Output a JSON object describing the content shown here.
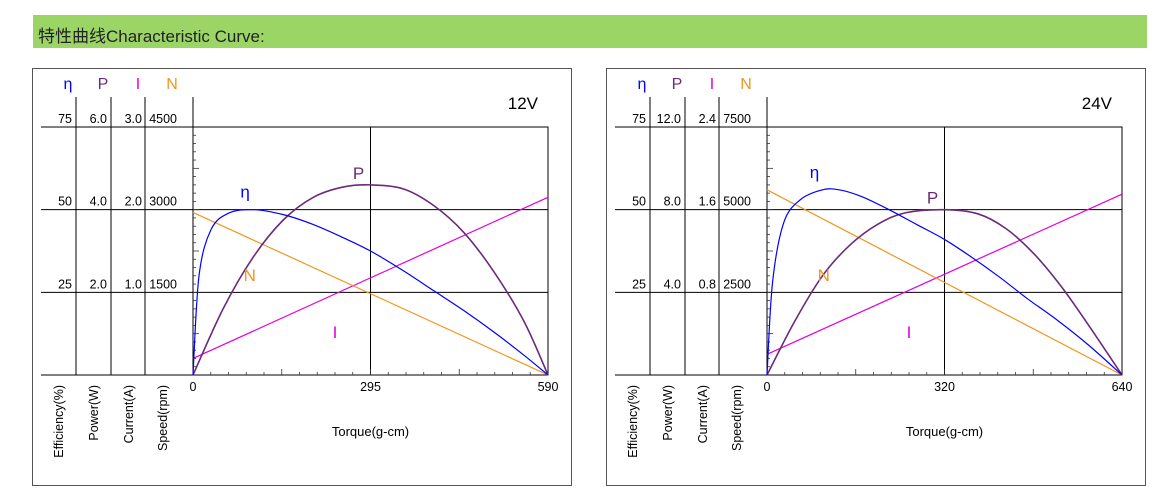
{
  "header": {
    "title": "特性曲线Characteristic Curve:"
  },
  "colors": {
    "header_bg": "#9bd566",
    "efficiency": "#0000ff",
    "power": "#6b2a7a",
    "current": "#e000e0",
    "speed": "#f0961e",
    "grid": "#000000"
  },
  "chart_data": [
    {
      "type": "line",
      "voltage_label": "12V",
      "xlabel": "Torque(g-cm)",
      "x_ticks": [
        "0",
        "295",
        "590"
      ],
      "xlim": [
        0,
        590
      ],
      "axes": [
        {
          "symbol": "η",
          "label": "Efficiency(%)",
          "ticks": [
            "75",
            "50",
            "25"
          ],
          "ylim": [
            0,
            75
          ]
        },
        {
          "symbol": "P",
          "label": "Power(W)",
          "ticks": [
            "6.0",
            "4.0",
            "2.0"
          ],
          "ylim": [
            0,
            6.0
          ]
        },
        {
          "symbol": "I",
          "label": "Current(A)",
          "ticks": [
            "3.0",
            "2.0",
            "1.0"
          ],
          "ylim": [
            0,
            3.0
          ]
        },
        {
          "symbol": "N",
          "label": "Speed(rpm)",
          "ticks": [
            "4500",
            "3000",
            "1500"
          ],
          "ylim": [
            0,
            4500
          ]
        }
      ],
      "series": [
        {
          "name": "η",
          "x": [
            0,
            10,
            30,
            60,
            100,
            150,
            200,
            250,
            295,
            350,
            400,
            450,
            500,
            550,
            590
          ],
          "values": [
            0,
            30,
            44,
            49,
            50,
            48.5,
            45.5,
            41.5,
            37.5,
            31.5,
            25.5,
            19.5,
            13,
            6,
            0
          ]
        },
        {
          "name": "P",
          "x": [
            0,
            50,
            100,
            150,
            200,
            250,
            295,
            350,
            400,
            450,
            500,
            550,
            590
          ],
          "values": [
            0,
            1.6,
            2.85,
            3.75,
            4.3,
            4.55,
            4.6,
            4.5,
            4.1,
            3.45,
            2.5,
            1.3,
            0
          ]
        },
        {
          "name": "I",
          "x": [
            0,
            590
          ],
          "values": [
            0.2,
            2.15
          ]
        },
        {
          "name": "N",
          "x": [
            0,
            590
          ],
          "values": [
            2950,
            0
          ]
        }
      ],
      "curve_labels": [
        "η",
        "P",
        "N",
        "I"
      ]
    },
    {
      "type": "line",
      "voltage_label": "24V",
      "xlabel": "Torque(g-cm)",
      "x_ticks": [
        "0",
        "320",
        "640"
      ],
      "xlim": [
        0,
        640
      ],
      "axes": [
        {
          "symbol": "η",
          "label": "Efficiency(%)",
          "ticks": [
            "75",
            "50",
            "25"
          ],
          "ylim": [
            0,
            75
          ]
        },
        {
          "symbol": "P",
          "label": "Power(W)",
          "ticks": [
            "12.0",
            "8.0",
            "4.0"
          ],
          "ylim": [
            0,
            12.0
          ]
        },
        {
          "symbol": "I",
          "label": "Current(A)",
          "ticks": [
            "2.4",
            "1.6",
            "0.8"
          ],
          "ylim": [
            0,
            2.4
          ]
        },
        {
          "symbol": "N",
          "label": "Speed(rpm)",
          "ticks": [
            "7500",
            "5000",
            "2500"
          ],
          "ylim": [
            0,
            7500
          ]
        }
      ],
      "series": [
        {
          "name": "η",
          "x": [
            0,
            10,
            30,
            60,
            100,
            130,
            170,
            220,
            270,
            320,
            370,
            420,
            470,
            520,
            580,
            640
          ],
          "values": [
            0,
            28,
            46,
            53,
            56,
            56,
            54,
            50,
            45.5,
            41,
            35.5,
            29.5,
            23,
            17,
            9,
            0
          ]
        },
        {
          "name": "P",
          "x": [
            0,
            50,
            100,
            150,
            200,
            250,
            320,
            380,
            430,
            480,
            530,
            580,
            640
          ],
          "values": [
            0,
            2.6,
            4.8,
            6.3,
            7.3,
            7.85,
            8.0,
            7.8,
            7.1,
            5.9,
            4.3,
            2.4,
            0
          ]
        },
        {
          "name": "I",
          "x": [
            0,
            640
          ],
          "values": [
            0.2,
            1.75
          ]
        },
        {
          "name": "N",
          "x": [
            0,
            640
          ],
          "values": [
            5600,
            0
          ]
        }
      ],
      "curve_labels": [
        "η",
        "P",
        "N",
        "I"
      ]
    }
  ]
}
